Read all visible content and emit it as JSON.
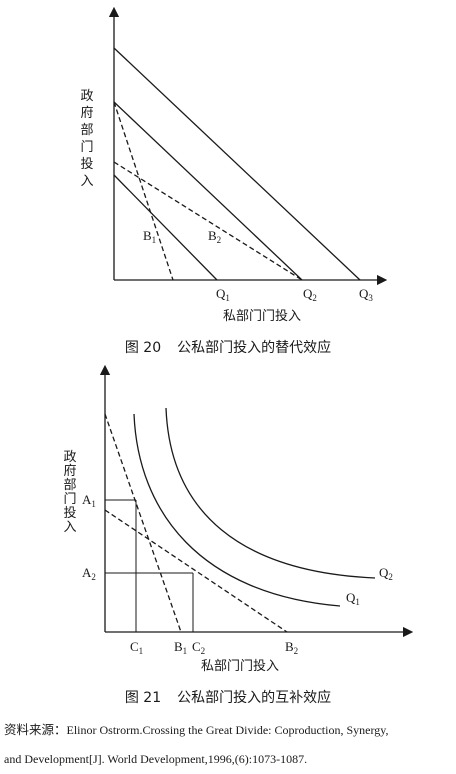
{
  "figure20": {
    "caption_number": "图 20",
    "caption_title": "公私部门投入的替代效应",
    "y_label": "政府部门投入",
    "x_label": "私部门门投入",
    "points": {
      "b1": {
        "main": "B",
        "sub": "1"
      },
      "b2": {
        "main": "B",
        "sub": "2"
      },
      "q1": {
        "main": "Q",
        "sub": "1"
      },
      "q2": {
        "main": "Q",
        "sub": "2"
      },
      "q3": {
        "main": "Q",
        "sub": "3"
      }
    }
  },
  "figure21": {
    "caption_number": "图 21",
    "caption_title": "公私部门投入的互补效应",
    "y_label": "政府部门投入",
    "x_label": "私部门门投入",
    "points": {
      "a1": {
        "main": "A",
        "sub": "1"
      },
      "a2": {
        "main": "A",
        "sub": "2"
      },
      "c1": {
        "main": "C",
        "sub": "1"
      },
      "b1": {
        "main": "B",
        "sub": "1"
      },
      "c2": {
        "main": "C",
        "sub": "2"
      },
      "b2": {
        "main": "B",
        "sub": "2"
      },
      "q1": {
        "main": "Q",
        "sub": "1"
      },
      "q2": {
        "main": "Q",
        "sub": "2"
      }
    }
  },
  "source": {
    "lead": "资料来源：",
    "line1": "Elinor Ostrorm.Crossing the Great Divide: Coproduction, Synergy,",
    "line2": "and Development[J]. World Development,1996,(6):1073-1087."
  }
}
